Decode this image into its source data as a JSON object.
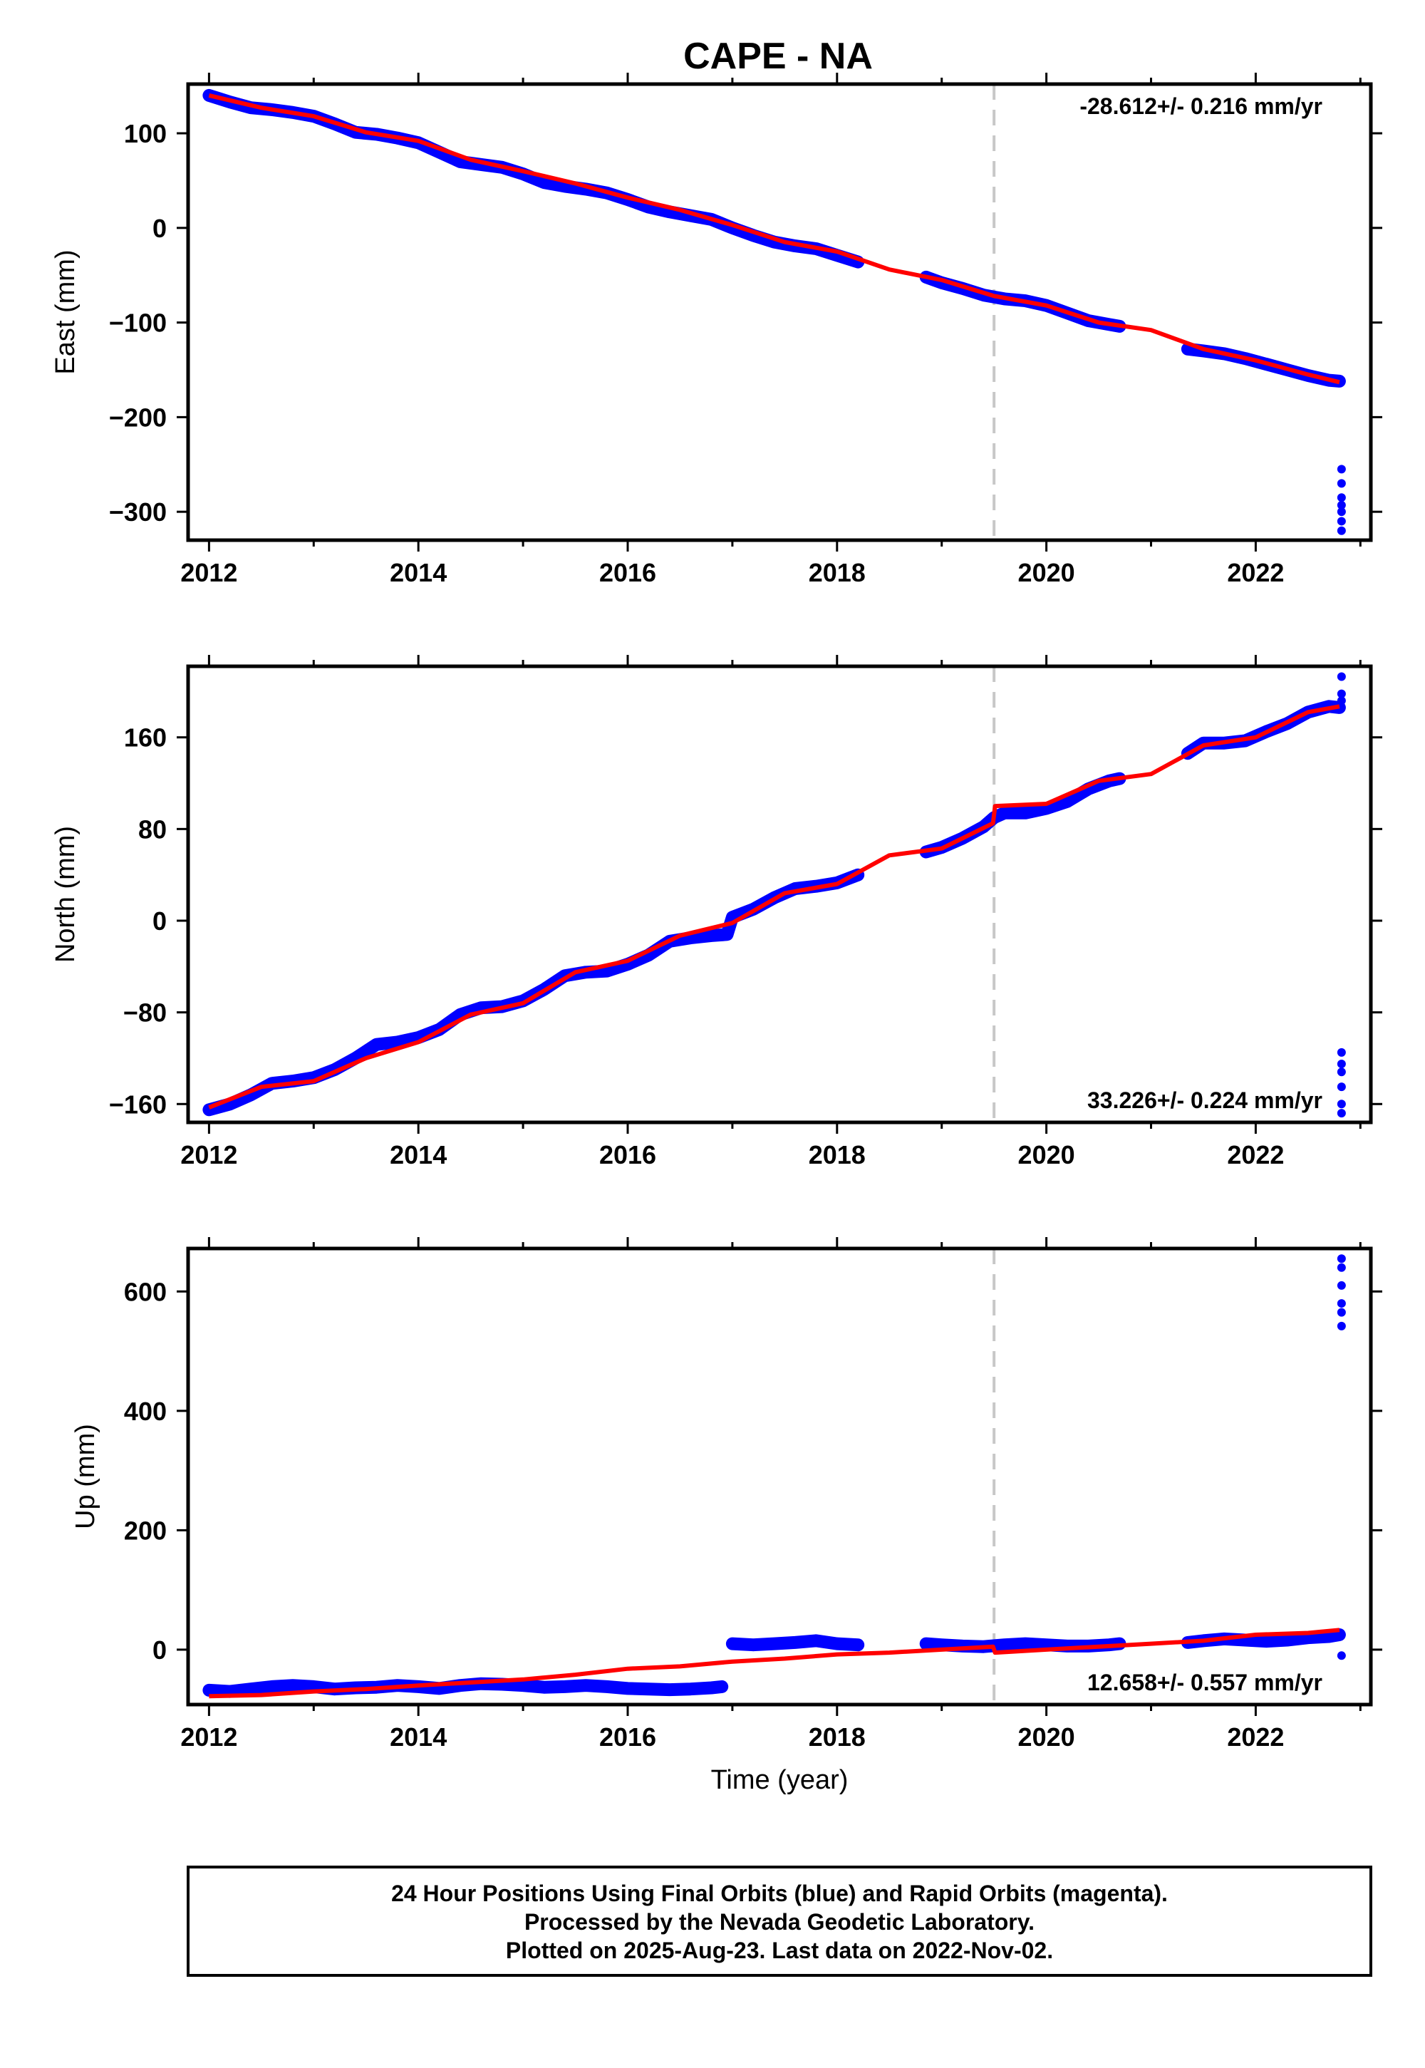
{
  "title": "CAPE - NA",
  "colors": {
    "final_orbits": "#0000ff",
    "model": "#ff0000",
    "event_line": "#c8c8c8",
    "frame": "#000000"
  },
  "chart_data": [
    {
      "type": "scatter",
      "ylabel": "East (mm)",
      "xlabel": "",
      "xlim": [
        2011.8,
        2023.1
      ],
      "ylim": [
        -330,
        152
      ],
      "xticks": [
        2012,
        2014,
        2016,
        2018,
        2020,
        2022
      ],
      "yticks": [
        100,
        0,
        -100,
        -200,
        -300
      ],
      "ytick_labels": [
        "100",
        "0",
        "−100",
        "−200",
        "−300"
      ],
      "event_line_x": 2019.5,
      "rate_text": "-28.612+/- 0.216 mm/yr",
      "rate_position": "top-right",
      "series": [
        {
          "kind": "points",
          "color": "#0000ff",
          "x": [
            2012.0,
            2012.2,
            2012.4,
            2012.6,
            2012.8,
            2013.0,
            2013.2,
            2013.4,
            2013.6,
            2013.8,
            2014.0,
            2014.2,
            2014.4,
            2014.6,
            2014.8,
            2015.0,
            2015.2,
            2015.4,
            2015.6,
            2015.8,
            2016.0,
            2016.2,
            2016.4,
            2016.6,
            2016.8,
            2017.0,
            2017.2,
            2017.4,
            2017.6,
            2017.8,
            2018.0,
            2018.2,
            2018.85,
            2019.0,
            2019.2,
            2019.4,
            2019.6,
            2019.8,
            2020.0,
            2020.2,
            2020.4,
            2020.6,
            2020.7,
            2021.35,
            2021.5,
            2021.7,
            2021.9,
            2022.1,
            2022.3,
            2022.5,
            2022.7,
            2022.8
          ],
          "y": [
            140,
            133,
            127,
            125,
            122,
            118,
            110,
            101,
            99,
            95,
            90,
            80,
            70,
            67,
            64,
            57,
            48,
            44,
            41,
            37,
            30,
            22,
            17,
            13,
            9,
            0,
            -8,
            -15,
            -19,
            -22,
            -29,
            -36,
            -52,
            -58,
            -64,
            -71,
            -75,
            -77,
            -82,
            -90,
            -98,
            -102,
            -104,
            -128,
            -130,
            -133,
            -138,
            -144,
            -150,
            -156,
            -161,
            -162
          ]
        },
        {
          "kind": "points",
          "color": "#0000ff",
          "x": [
            2022.82,
            2022.82,
            2022.82,
            2022.82,
            2022.82,
            2022.82,
            2022.82
          ],
          "y": [
            -255,
            -270,
            -285,
            -293,
            -300,
            -310,
            -320
          ]
        },
        {
          "kind": "line",
          "color": "#ff0000",
          "x": [
            2012.0,
            2012.5,
            2013.0,
            2013.5,
            2014.0,
            2014.5,
            2015.0,
            2015.5,
            2016.0,
            2016.5,
            2017.0,
            2017.5,
            2018.0,
            2018.5,
            2019.0,
            2019.5,
            2020.0,
            2020.5,
            2021.0,
            2021.5,
            2022.0,
            2022.5,
            2022.8
          ],
          "y": [
            140,
            127,
            118,
            101,
            92,
            72,
            60,
            47,
            32,
            19,
            3,
            -15,
            -25,
            -44,
            -55,
            -72,
            -82,
            -100,
            -108,
            -128,
            -140,
            -155,
            -163
          ]
        }
      ]
    },
    {
      "type": "scatter",
      "ylabel": "North (mm)",
      "xlabel": "",
      "xlim": [
        2011.8,
        2023.1
      ],
      "ylim": [
        -176,
        222
      ],
      "xticks": [
        2012,
        2014,
        2016,
        2018,
        2020,
        2022
      ],
      "yticks": [
        160,
        80,
        0,
        -80,
        -160
      ],
      "ytick_labels": [
        "160",
        "80",
        "0",
        "−80",
        "−160"
      ],
      "event_line_x": 2019.5,
      "rate_text": "33.226+/- 0.224 mm/yr",
      "rate_position": "bottom-right",
      "series": [
        {
          "kind": "points",
          "color": "#0000ff",
          "x": [
            2012.0,
            2012.2,
            2012.4,
            2012.6,
            2012.8,
            2013.0,
            2013.2,
            2013.4,
            2013.6,
            2013.8,
            2014.0,
            2014.2,
            2014.4,
            2014.6,
            2014.8,
            2015.0,
            2015.2,
            2015.4,
            2015.6,
            2015.8,
            2016.0,
            2016.2,
            2016.4,
            2016.6,
            2016.8,
            2016.95,
            2017.0,
            2017.2,
            2017.4,
            2017.6,
            2017.8,
            2018.0,
            2018.2,
            2018.85,
            2019.0,
            2019.2,
            2019.4,
            2019.5,
            2019.6,
            2019.8,
            2020.0,
            2020.2,
            2020.4,
            2020.6,
            2020.7,
            2021.35,
            2021.5,
            2021.7,
            2021.9,
            2022.1,
            2022.3,
            2022.5,
            2022.7,
            2022.8
          ],
          "y": [
            -165,
            -160,
            -152,
            -142,
            -140,
            -137,
            -130,
            -120,
            -108,
            -106,
            -102,
            -95,
            -82,
            -76,
            -75,
            -70,
            -60,
            -48,
            -45,
            -44,
            -38,
            -30,
            -18,
            -15,
            -13,
            -12,
            3,
            10,
            20,
            28,
            30,
            33,
            40,
            60,
            64,
            72,
            82,
            90,
            94,
            94,
            98,
            104,
            115,
            122,
            124,
            146,
            155,
            155,
            157,
            165,
            172,
            182,
            187,
            186
          ]
        },
        {
          "kind": "points",
          "color": "#0000ff",
          "x": [
            2022.82,
            2022.82,
            2022.82,
            2022.82,
            2022.82,
            2022.82,
            2022.82,
            2022.82,
            2022.82
          ],
          "y": [
            213,
            198,
            192,
            -115,
            -125,
            -132,
            -145,
            -160,
            -168
          ]
        },
        {
          "kind": "line",
          "color": "#ff0000",
          "x": [
            2012.0,
            2012.5,
            2013.0,
            2013.5,
            2014.0,
            2014.5,
            2015.0,
            2015.5,
            2016.0,
            2016.5,
            2017.0,
            2017.5,
            2018.0,
            2018.5,
            2019.0,
            2019.49,
            2019.51,
            2020.0,
            2020.5,
            2021.0,
            2021.5,
            2022.0,
            2022.5,
            2022.8
          ],
          "y": [
            -163,
            -145,
            -140,
            -120,
            -106,
            -82,
            -72,
            -45,
            -35,
            -13,
            -2,
            24,
            32,
            57,
            63,
            85,
            100,
            102,
            122,
            128,
            153,
            160,
            182,
            187
          ]
        }
      ]
    },
    {
      "type": "scatter",
      "ylabel": "Up (mm)",
      "xlabel": "Time (year)",
      "xlim": [
        2011.8,
        2023.1
      ],
      "ylim": [
        -92,
        672
      ],
      "xticks": [
        2012,
        2014,
        2016,
        2018,
        2020,
        2022
      ],
      "yticks": [
        600,
        400,
        200,
        0
      ],
      "ytick_labels": [
        "600",
        "400",
        "200",
        "0"
      ],
      "event_line_x": 2019.5,
      "rate_text": "12.658+/- 0.557 mm/yr",
      "rate_position": "bottom-right",
      "series": [
        {
          "kind": "points",
          "color": "#0000ff",
          "x": [
            2012.0,
            2012.2,
            2012.4,
            2012.6,
            2012.8,
            2013.0,
            2013.2,
            2013.4,
            2013.6,
            2013.8,
            2014.0,
            2014.2,
            2014.4,
            2014.6,
            2014.8,
            2015.0,
            2015.2,
            2015.4,
            2015.6,
            2015.8,
            2016.0,
            2016.2,
            2016.4,
            2016.6,
            2016.8,
            2016.9,
            2017.0,
            2017.2,
            2017.4,
            2017.6,
            2017.8,
            2018.0,
            2018.2,
            2018.85,
            2019.0,
            2019.2,
            2019.4,
            2019.6,
            2019.8,
            2020.0,
            2020.2,
            2020.4,
            2020.6,
            2020.7,
            2021.35,
            2021.5,
            2021.7,
            2021.9,
            2022.1,
            2022.3,
            2022.5,
            2022.7,
            2022.8
          ],
          "y": [
            -68,
            -70,
            -66,
            -62,
            -60,
            -62,
            -66,
            -64,
            -63,
            -60,
            -62,
            -65,
            -60,
            -57,
            -58,
            -60,
            -63,
            -62,
            -60,
            -62,
            -65,
            -66,
            -67,
            -66,
            -64,
            -62,
            10,
            8,
            10,
            12,
            15,
            10,
            8,
            10,
            8,
            6,
            5,
            8,
            10,
            8,
            6,
            6,
            8,
            10,
            12,
            15,
            18,
            16,
            14,
            16,
            20,
            22,
            25
          ]
        },
        {
          "kind": "points",
          "color": "#0000ff",
          "x": [
            2022.82,
            2022.82,
            2022.82,
            2022.82,
            2022.82,
            2022.82,
            2022.82
          ],
          "y": [
            655,
            640,
            610,
            580,
            565,
            542,
            -10
          ]
        },
        {
          "kind": "line",
          "color": "#ff0000",
          "x": [
            2012.0,
            2012.5,
            2013.0,
            2013.5,
            2014.0,
            2014.5,
            2015.0,
            2015.5,
            2016.0,
            2016.5,
            2017.0,
            2017.5,
            2018.0,
            2018.5,
            2019.0,
            2019.49,
            2019.51,
            2020.0,
            2020.5,
            2021.0,
            2021.5,
            2022.0,
            2022.5,
            2022.8
          ],
          "y": [
            -78,
            -76,
            -70,
            -66,
            -60,
            -55,
            -50,
            -42,
            -32,
            -28,
            -20,
            -15,
            -8,
            -5,
            0,
            5,
            -5,
            0,
            5,
            10,
            15,
            25,
            28,
            33
          ]
        }
      ]
    }
  ],
  "footer": {
    "line1": "24 Hour Positions Using Final Orbits (blue) and Rapid Orbits (magenta).",
    "line2": "Processed by the Nevada Geodetic Laboratory.",
    "line3": "Plotted on 2025-Aug-23. Last data on 2022-Nov-02."
  }
}
